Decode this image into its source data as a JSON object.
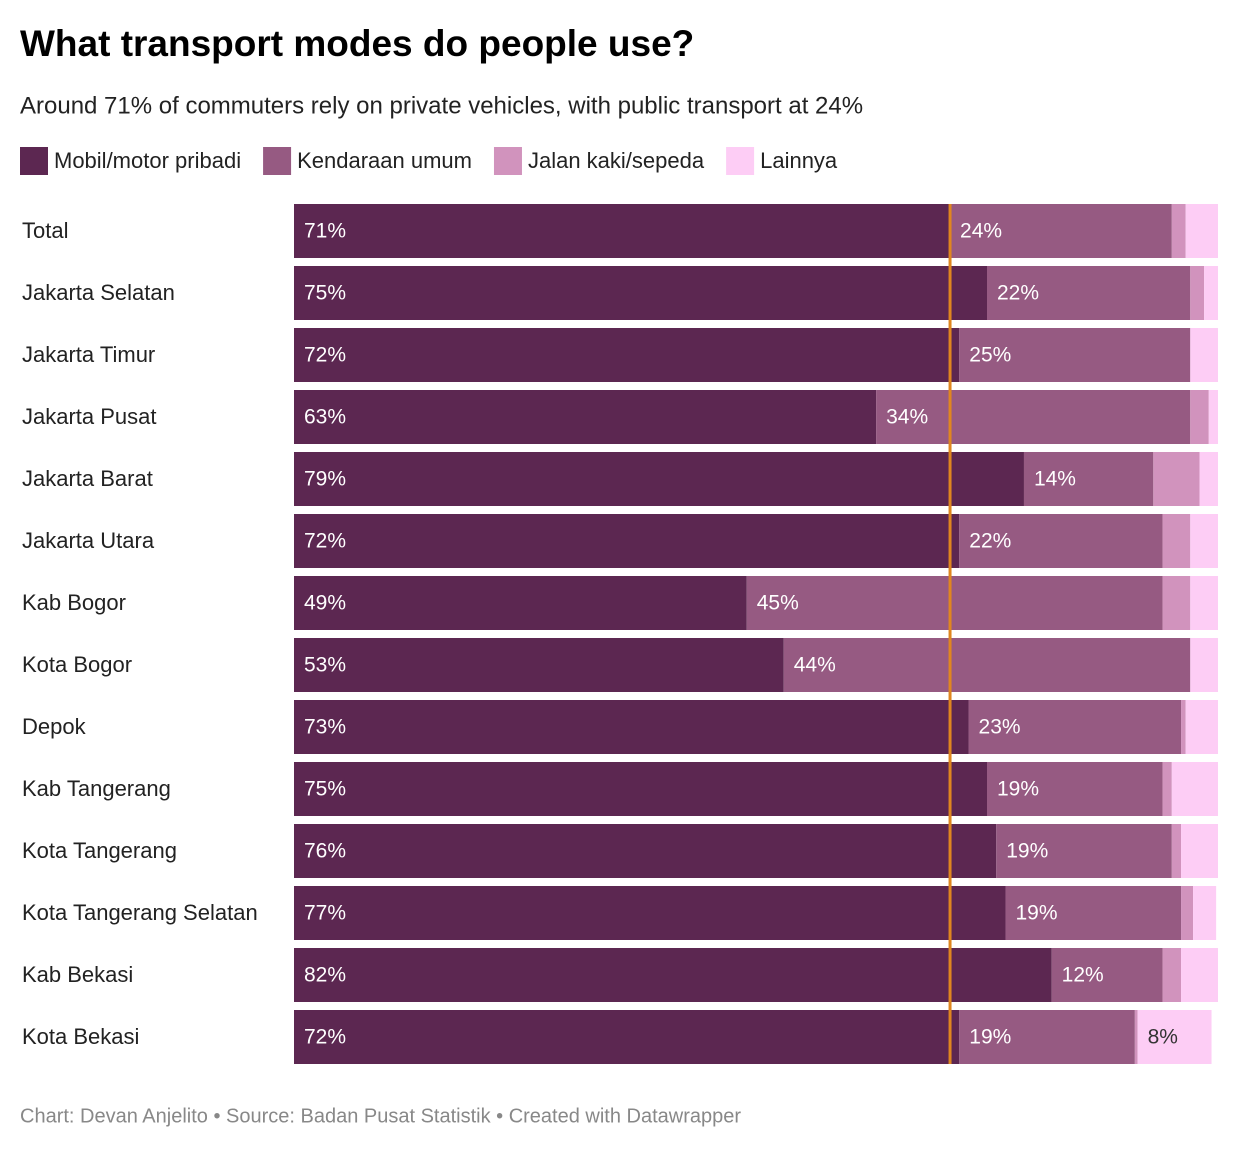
{
  "chart_data": {
    "type": "stacked_bar_horizontal",
    "title": "What transport modes do people use?",
    "subtitle": "Around 71% of commuters rely on private vehicles, with public transport at 24%",
    "footer": "Chart: Devan Anjelito • Source: Badan Pusat Statistik • Created with Datawrapper",
    "categories": [
      "Total",
      "Jakarta Selatan",
      "Jakarta Timur",
      "Jakarta Pusat",
      "Jakarta Barat",
      "Jakarta Utara",
      "Kab Bogor",
      "Kota Bogor",
      "Depok",
      "Kab Tangerang",
      "Kota Tangerang",
      "Kota Tangerang Selatan",
      "Kab Bekasi",
      "Kota Bekasi"
    ],
    "series": [
      {
        "name": "Mobil/motor pribadi",
        "color": "#5c2751",
        "values": [
          71,
          75,
          72,
          63,
          79,
          72,
          49,
          53,
          73,
          75,
          76,
          77,
          82,
          72
        ],
        "value_labels": [
          "71%",
          "75%",
          "72%",
          "63%",
          "79%",
          "72%",
          "49%",
          "53%",
          "73%",
          "75%",
          "76%",
          "77%",
          "82%",
          "72%"
        ]
      },
      {
        "name": "Kendaraan umum",
        "color": "#965a82",
        "values": [
          24,
          22,
          25,
          34,
          14,
          22,
          45,
          44,
          23,
          19,
          19,
          19,
          12,
          19
        ],
        "value_labels": [
          "24%",
          "22%",
          "25%",
          "34%",
          "14%",
          "22%",
          "45%",
          "44%",
          "23%",
          "19%",
          "19%",
          "19%",
          "12%",
          "19%"
        ]
      },
      {
        "name": "Jalan kaki/sepeda",
        "color": "#d193bd",
        "values": [
          1.5,
          1.5,
          0,
          2,
          5,
          3,
          3,
          0,
          0.5,
          1,
          1,
          1.3,
          2,
          0.3
        ]
      },
      {
        "name": "Lainnya",
        "color": "#fdcdf5",
        "values": [
          3.5,
          1.5,
          3,
          1,
          2,
          3,
          3,
          3,
          3.5,
          5,
          4,
          2.5,
          4,
          8
        ],
        "value_labels": [
          null,
          null,
          null,
          null,
          null,
          null,
          null,
          null,
          null,
          null,
          null,
          null,
          null,
          "8%"
        ]
      }
    ],
    "xlim": [
      0,
      100
    ],
    "reference_line": {
      "value": 71,
      "color": "#e0861f"
    }
  }
}
